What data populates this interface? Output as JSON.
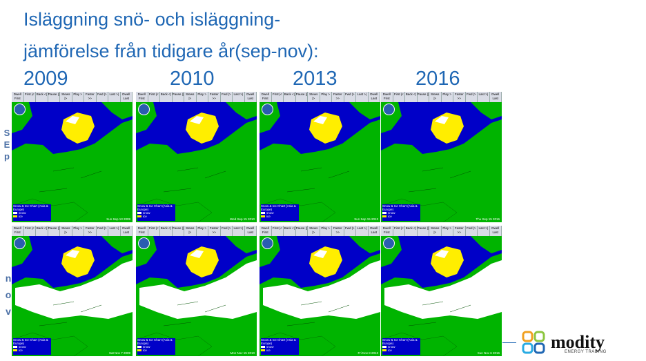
{
  "title": {
    "line1": "Isläggning snö- och isläggning-",
    "line2": "jämförelse från tidigare år(sep-nov):"
  },
  "years": [
    "2009",
    "2010",
    "2013",
    "2016"
  ],
  "row_labels": {
    "sep": [
      "S",
      "E",
      "p"
    ],
    "nov": [
      "n",
      "o",
      "v"
    ]
  },
  "panel": {
    "toolbar": [
      "Dwell First",
      "First |<",
      "Back <|",
      "Pause ||",
      "Stews |>",
      "Play >",
      "Faster >>",
      "Fwd |>",
      "Last >|",
      "Dwell Last"
    ],
    "chart_title": "Snow & Ice Chart (Asia & Europe)",
    "legend_snow": "snow",
    "legend_ice": "ice"
  },
  "dates": {
    "sep": [
      "Sun Sep 13 2009",
      "Wed Sep 15 2010",
      "Sun Sep 15 2013",
      "Thu Sep 15 2016"
    ],
    "nov": [
      "Sat Nov 7 2009",
      "Mon Nov 15 2010",
      "Fri Nov 8 2013",
      "Sun Nov 6 2016"
    ]
  },
  "colors": {
    "ocean": "#0000c8",
    "land": "#00b400",
    "snow": "#ffffff",
    "ice": "#ffee00",
    "title": "#1f67b4"
  },
  "brand": {
    "name": "modity",
    "sub": "ENERGY TRADING"
  }
}
